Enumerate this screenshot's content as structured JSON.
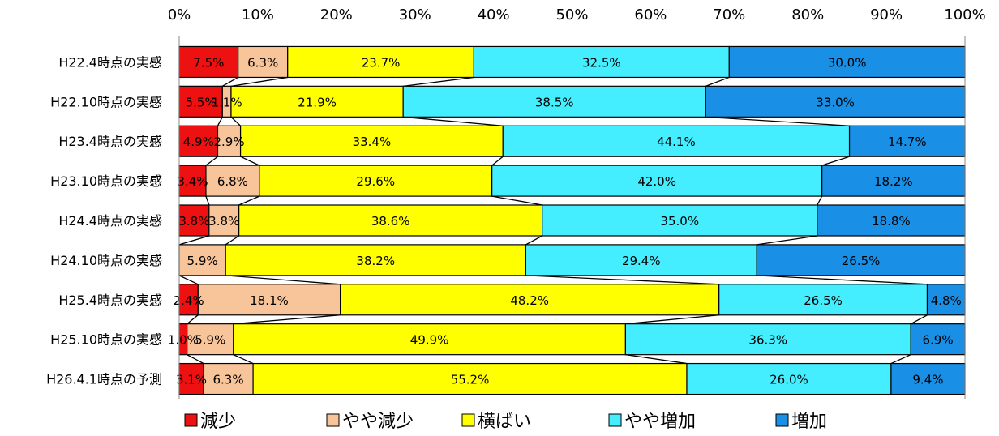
{
  "chart_data": {
    "type": "bar",
    "orientation": "horizontal",
    "stacked": "100%",
    "categories": [
      "H22.4時点の実感",
      "H22.10時点の実感",
      "H23.4時点の実感",
      "H23.10時点の実感",
      "H24.4時点の実感",
      "H24.10時点の実感",
      "H25.4時点の実感",
      "H25.10時点の実感",
      "H26.4.1時点の予測"
    ],
    "series": [
      {
        "name": "減少",
        "color": "#ee1111",
        "values": [
          7.5,
          5.5,
          4.9,
          3.4,
          3.8,
          0.0,
          2.4,
          1.0,
          3.1
        ],
        "labels": [
          "7.5%",
          "5.5%",
          "4.9%",
          "3.4%",
          "3.8%",
          "",
          "2.4%",
          "1.0%",
          "3.1%"
        ]
      },
      {
        "name": "やや減少",
        "color": "#f8c49a",
        "values": [
          6.3,
          1.1,
          2.9,
          6.8,
          3.8,
          5.9,
          18.1,
          5.9,
          6.3
        ],
        "labels": [
          "6.3%",
          "1.1%",
          "2.9%",
          "6.8%",
          "3.8%",
          "5.9%",
          "18.1%",
          "5.9%",
          "6.3%"
        ]
      },
      {
        "name": "横ばい",
        "color": "#ffff00",
        "values": [
          23.7,
          21.9,
          33.4,
          29.6,
          38.6,
          38.2,
          48.2,
          49.9,
          55.2
        ],
        "labels": [
          "23.7%",
          "21.9%",
          "33.4%",
          "29.6%",
          "38.6%",
          "38.2%",
          "48.2%",
          "49.9%",
          "55.2%"
        ]
      },
      {
        "name": "やや増加",
        "color": "#44eeff",
        "values": [
          32.5,
          38.5,
          44.1,
          42.0,
          35.0,
          29.4,
          26.5,
          36.3,
          26.0
        ],
        "labels": [
          "32.5%",
          "38.5%",
          "44.1%",
          "42.0%",
          "35.0%",
          "29.4%",
          "26.5%",
          "36.3%",
          "26.0%"
        ]
      },
      {
        "name": "増加",
        "color": "#1a8fe6",
        "values": [
          30.0,
          33.0,
          14.7,
          18.2,
          18.8,
          26.5,
          4.8,
          6.9,
          9.4
        ],
        "labels": [
          "30.0%",
          "33.0%",
          "14.7%",
          "18.2%",
          "18.8%",
          "26.5%",
          "4.8%",
          "6.9%",
          "9.4%"
        ]
      }
    ],
    "x_ticks": [
      "0%",
      "10%",
      "20%",
      "30%",
      "40%",
      "50%",
      "60%",
      "70%",
      "80%",
      "90%",
      "100%"
    ],
    "xlim": [
      0,
      100
    ],
    "axis_position": "top",
    "series_lines": true,
    "grid": false,
    "legend_position": "bottom"
  }
}
